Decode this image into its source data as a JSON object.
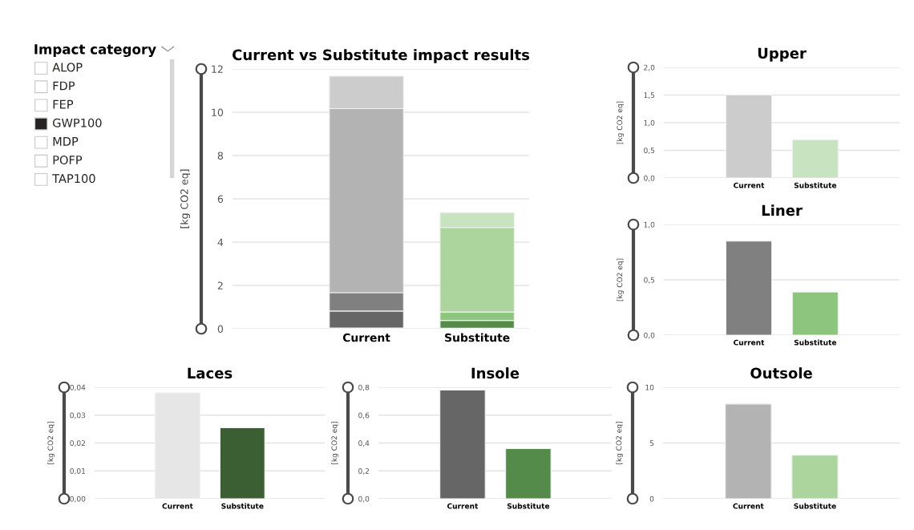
{
  "chart_data": [
    {
      "type": "other",
      "title": "Impact category",
      "annotations": [
        "ALOP",
        "FDP",
        "FEP",
        "GWP100",
        "MDP",
        "POFP",
        "TAP100"
      ],
      "colors": [
        "#ffffff",
        "#ffffff",
        "#ffffff",
        "#252423",
        "#ffffff",
        "#ffffff",
        "#ffffff"
      ]
    },
    {
      "type": "bar",
      "title": "Current vs Substitute impact results",
      "ylabel": "[kg CO2 eq]",
      "categories": [
        "Current",
        "Substitute"
      ],
      "stacked": true,
      "grid": "y",
      "ylim": [
        0,
        12
      ],
      "yticks": [
        0,
        2,
        4,
        6,
        8,
        10,
        12
      ],
      "series": [
        {
          "colors": [
            "#e6e6e6",
            "#3c5e33"
          ],
          "values": [
            0.038,
            0.025
          ]
        },
        {
          "colors": [
            "#666666",
            "#548a4a"
          ],
          "values": [
            0.78,
            0.36
          ]
        },
        {
          "colors": [
            "#808080",
            "#8dc47e"
          ],
          "values": [
            0.85,
            0.39
          ]
        },
        {
          "colors": [
            "#b3b3b3",
            "#acd59e"
          ],
          "values": [
            8.5,
            3.9
          ]
        },
        {
          "colors": [
            "#cccccc",
            "#c8e3c0"
          ],
          "values": [
            1.5,
            0.69
          ]
        }
      ]
    },
    {
      "type": "bar",
      "title": "Upper",
      "ylabel": "[kg CO2 eq]",
      "categories": [
        "Current",
        "Substitute"
      ],
      "values": [
        1.5,
        0.69
      ],
      "colors": [
        "#cccccc",
        "#c8e3c0"
      ],
      "grid": "y",
      "ylim": [
        0,
        2
      ],
      "yticks": [
        {
          "value": 0,
          "label": "0,0"
        },
        {
          "value": 0.5,
          "label": "0,5"
        },
        {
          "value": 1,
          "label": "1,0"
        },
        {
          "value": 1.5,
          "label": "1,5"
        },
        {
          "value": 2,
          "label": "2,0"
        }
      ]
    },
    {
      "type": "bar",
      "title": "Liner",
      "ylabel": "[kg CO2 eq]",
      "categories": [
        "Current",
        "Substitute"
      ],
      "values": [
        0.85,
        0.39
      ],
      "colors": [
        "#808080",
        "#8dc47e"
      ],
      "grid": "y",
      "ylim": [
        0,
        1
      ],
      "yticks": [
        {
          "value": 0,
          "label": "0,0"
        },
        {
          "value": 0.5,
          "label": "0,5"
        },
        {
          "value": 1,
          "label": "1,0"
        }
      ]
    },
    {
      "type": "bar",
      "title": "Laces",
      "ylabel": "[kg CO2 eq]",
      "categories": [
        "Current",
        "Substitute"
      ],
      "values": [
        0.038,
        0.0255
      ],
      "colors": [
        "#e6e6e6",
        "#3c5e33"
      ],
      "grid": "y",
      "ylim": [
        0,
        0.04
      ],
      "yticks": [
        {
          "value": 0,
          "label": "0,00"
        },
        {
          "value": 0.01,
          "label": "0,01"
        },
        {
          "value": 0.02,
          "label": "0,02"
        },
        {
          "value": 0.03,
          "label": "0,03"
        },
        {
          "value": 0.04,
          "label": "0,04"
        }
      ]
    },
    {
      "type": "bar",
      "title": "Insole",
      "ylabel": "[kg CO2 eq]",
      "categories": [
        "Current",
        "Substitute"
      ],
      "values": [
        0.78,
        0.36
      ],
      "colors": [
        "#666666",
        "#548a4a"
      ],
      "grid": "y",
      "ylim": [
        0,
        0.8
      ],
      "yticks": [
        {
          "value": 0,
          "label": "0,0"
        },
        {
          "value": 0.2,
          "label": "0,2"
        },
        {
          "value": 0.4,
          "label": "0,4"
        },
        {
          "value": 0.6,
          "label": "0,6"
        },
        {
          "value": 0.8,
          "label": "0,8"
        }
      ]
    },
    {
      "type": "bar",
      "title": "Outsole",
      "ylabel": "[kg CO2 eq]",
      "categories": [
        "Current",
        "Substitute"
      ],
      "values": [
        8.5,
        3.9
      ],
      "colors": [
        "#b3b3b3",
        "#acd59e"
      ],
      "grid": "y",
      "ylim": [
        0,
        10
      ],
      "yticks": [
        0,
        5,
        10
      ]
    }
  ]
}
